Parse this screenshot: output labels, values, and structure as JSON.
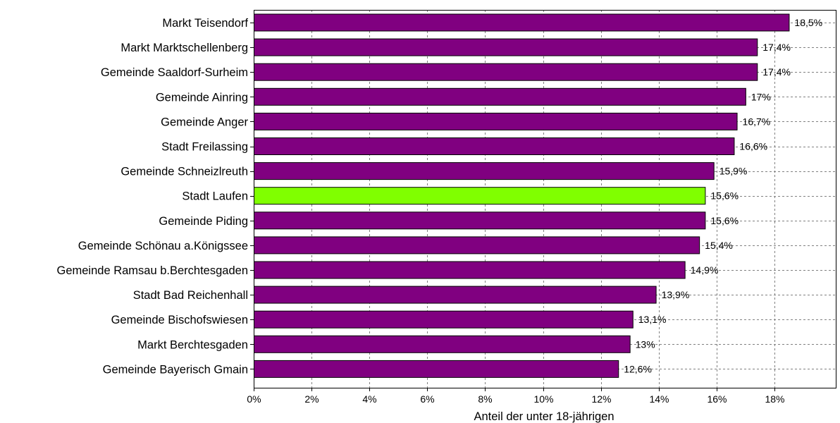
{
  "chart_data": {
    "type": "bar",
    "orientation": "horizontal",
    "title": "",
    "xlabel": "Anteil der unter 18-jährigen",
    "ylabel": "",
    "xlim": [
      0,
      20
    ],
    "x_ticks": [
      0,
      2,
      4,
      6,
      8,
      10,
      12,
      14,
      16,
      18
    ],
    "x_tick_labels": [
      "0%",
      "2%",
      "4%",
      "6%",
      "8%",
      "10%",
      "12%",
      "14%",
      "16%",
      "18%"
    ],
    "grid": true,
    "legend": "none",
    "categories": [
      "Markt Teisendorf",
      "Markt Marktschellenberg",
      "Gemeinde Saaldorf-Surheim",
      "Gemeinde Ainring",
      "Gemeinde Anger",
      "Stadt Freilassing",
      "Gemeinde Schneizlreuth",
      "Stadt Laufen",
      "Gemeinde Piding",
      "Gemeinde Schönau a.Königssee",
      "Gemeinde Ramsau b.Berchtesgaden",
      "Stadt Bad Reichenhall",
      "Gemeinde Bischofswiesen",
      "Markt Berchtesgaden",
      "Gemeinde Bayerisch Gmain"
    ],
    "values": [
      18.5,
      17.4,
      17.4,
      17.0,
      16.7,
      16.6,
      15.9,
      15.6,
      15.6,
      15.4,
      14.9,
      13.9,
      13.1,
      13.0,
      12.6
    ],
    "value_labels": [
      "18,5%",
      "17,4%",
      "17,4%",
      "17%",
      "16,7%",
      "16,6%",
      "15,9%",
      "15,6%",
      "15,6%",
      "15,4%",
      "14,9%",
      "13,9%",
      "13,1%",
      "13%",
      "12,6%"
    ],
    "highlight_index": 7,
    "colors": {
      "bar": "#800080",
      "highlight": "#80ff00",
      "grid": "#808080",
      "border": "#000000"
    }
  }
}
